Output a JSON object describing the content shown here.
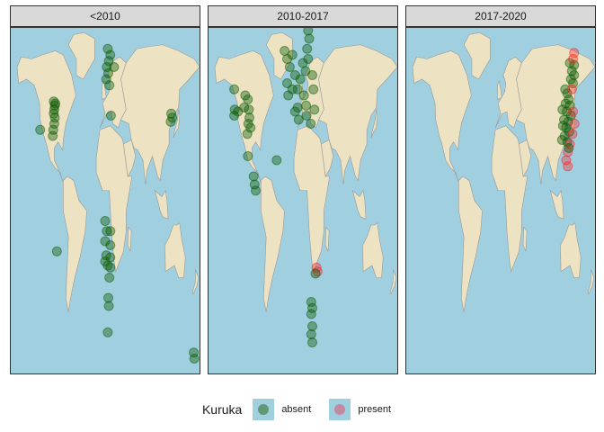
{
  "legend": {
    "title": "Kuruka",
    "items": [
      {
        "label": "absent",
        "color": "#2e6b1f"
      },
      {
        "label": "present",
        "color": "#e0506a"
      }
    ]
  },
  "colors": {
    "ocean": "#a0cfe0",
    "land": "#ede3c3",
    "border": "#999999",
    "absent": "#0b5a00",
    "present": "#ff2020"
  },
  "panels": [
    {
      "label": "<2010",
      "points": [
        {
          "lon": -98,
          "lat": 49,
          "status": "absent"
        },
        {
          "lon": -96,
          "lat": 47,
          "status": "absent"
        },
        {
          "lon": -97,
          "lat": 45,
          "status": "absent"
        },
        {
          "lon": -95,
          "lat": 48,
          "status": "absent"
        },
        {
          "lon": -98,
          "lat": 43,
          "status": "absent"
        },
        {
          "lon": -96,
          "lat": 41,
          "status": "absent"
        },
        {
          "lon": -97,
          "lat": 38,
          "status": "absent"
        },
        {
          "lon": -99,
          "lat": 35,
          "status": "absent"
        },
        {
          "lon": -100,
          "lat": 32,
          "status": "absent"
        },
        {
          "lon": -124,
          "lat": 35,
          "status": "absent"
        },
        {
          "lon": -92,
          "lat": -25,
          "status": "absent"
        },
        {
          "lon": 5,
          "lat": 75,
          "status": "absent"
        },
        {
          "lon": 10,
          "lat": 72,
          "status": "absent"
        },
        {
          "lon": 7,
          "lat": 69,
          "status": "absent"
        },
        {
          "lon": 3,
          "lat": 66,
          "status": "absent"
        },
        {
          "lon": 6,
          "lat": 63,
          "status": "absent"
        },
        {
          "lon": 2,
          "lat": 60,
          "status": "absent"
        },
        {
          "lon": 8,
          "lat": 57,
          "status": "absent"
        },
        {
          "lon": 17,
          "lat": 66,
          "status": "absent"
        },
        {
          "lon": 11,
          "lat": 42,
          "status": "absent"
        },
        {
          "lon": 126,
          "lat": 43,
          "status": "absent"
        },
        {
          "lon": 128,
          "lat": 41,
          "status": "absent"
        },
        {
          "lon": 125,
          "lat": 39,
          "status": "absent"
        },
        {
          "lon": 0,
          "lat": -10,
          "status": "absent"
        },
        {
          "lon": 3,
          "lat": -15,
          "status": "absent"
        },
        {
          "lon": 10,
          "lat": -15,
          "status": "absent"
        },
        {
          "lon": 0,
          "lat": -20,
          "status": "absent"
        },
        {
          "lon": 10,
          "lat": -22,
          "status": "absent"
        },
        {
          "lon": 2,
          "lat": -27,
          "status": "absent"
        },
        {
          "lon": 10,
          "lat": -28,
          "status": "absent"
        },
        {
          "lon": 0,
          "lat": -30,
          "status": "absent"
        },
        {
          "lon": 5,
          "lat": -32,
          "status": "absent"
        },
        {
          "lon": 10,
          "lat": -33,
          "status": "absent"
        },
        {
          "lon": 8,
          "lat": -38,
          "status": "absent"
        },
        {
          "lon": 6,
          "lat": -48,
          "status": "absent"
        },
        {
          "lon": 7,
          "lat": -52,
          "status": "absent"
        },
        {
          "lon": 5,
          "lat": -65,
          "status": "absent"
        },
        {
          "lon": 169,
          "lat": -75,
          "status": "absent"
        },
        {
          "lon": 170,
          "lat": -78,
          "status": "absent"
        }
      ]
    },
    {
      "label": "2010-2017",
      "points": [
        {
          "lon": -131,
          "lat": 55,
          "status": "absent"
        },
        {
          "lon": -130,
          "lat": 45,
          "status": "absent"
        },
        {
          "lon": -131,
          "lat": 42,
          "status": "absent"
        },
        {
          "lon": -124,
          "lat": 44,
          "status": "absent"
        },
        {
          "lon": -110,
          "lat": 52,
          "status": "absent"
        },
        {
          "lon": -112,
          "lat": 46,
          "status": "absent"
        },
        {
          "lon": -105,
          "lat": 50,
          "status": "absent"
        },
        {
          "lon": -103,
          "lat": 45,
          "status": "absent"
        },
        {
          "lon": -102,
          "lat": 41,
          "status": "absent"
        },
        {
          "lon": -104,
          "lat": 38,
          "status": "absent"
        },
        {
          "lon": -100,
          "lat": 36,
          "status": "absent"
        },
        {
          "lon": -106,
          "lat": 33,
          "status": "absent"
        },
        {
          "lon": -105,
          "lat": 22,
          "status": "absent"
        },
        {
          "lon": -94,
          "lat": 12,
          "status": "absent"
        },
        {
          "lon": -92,
          "lat": 8,
          "status": "absent"
        },
        {
          "lon": -90,
          "lat": 5,
          "status": "absent"
        },
        {
          "lon": -50,
          "lat": 20,
          "status": "absent"
        },
        {
          "lon": -35,
          "lat": 74,
          "status": "absent"
        },
        {
          "lon": -30,
          "lat": 70,
          "status": "absent"
        },
        {
          "lon": -25,
          "lat": 66,
          "status": "absent"
        },
        {
          "lon": -20,
          "lat": 72,
          "status": "absent"
        },
        {
          "lon": -15,
          "lat": 62,
          "status": "absent"
        },
        {
          "lon": -30,
          "lat": 58,
          "status": "absent"
        },
        {
          "lon": -20,
          "lat": 55,
          "status": "absent"
        },
        {
          "lon": -28,
          "lat": 52,
          "status": "absent"
        },
        {
          "lon": -10,
          "lat": 55,
          "status": "absent"
        },
        {
          "lon": -5,
          "lat": 60,
          "status": "absent"
        },
        {
          "lon": 0,
          "lat": 68,
          "status": "absent"
        },
        {
          "lon": 5,
          "lat": 64,
          "status": "absent"
        },
        {
          "lon": 10,
          "lat": 70,
          "status": "absent"
        },
        {
          "lon": 8,
          "lat": 75,
          "status": "absent"
        },
        {
          "lon": 12,
          "lat": 80,
          "status": "absent"
        },
        {
          "lon": 10,
          "lat": 84,
          "status": "absent"
        },
        {
          "lon": 2,
          "lat": 52,
          "status": "absent"
        },
        {
          "lon": 6,
          "lat": 47,
          "status": "absent"
        },
        {
          "lon": -10,
          "lat": 46,
          "status": "absent"
        },
        {
          "lon": -15,
          "lat": 44,
          "status": "absent"
        },
        {
          "lon": -8,
          "lat": 40,
          "status": "absent"
        },
        {
          "lon": 7,
          "lat": 42,
          "status": "absent"
        },
        {
          "lon": 18,
          "lat": 62,
          "status": "absent"
        },
        {
          "lon": 20,
          "lat": 55,
          "status": "absent"
        },
        {
          "lon": 22,
          "lat": 45,
          "status": "absent"
        },
        {
          "lon": 15,
          "lat": 38,
          "status": "absent"
        },
        {
          "lon": 26,
          "lat": -33,
          "status": "present"
        },
        {
          "lon": 28,
          "lat": -35,
          "status": "present"
        },
        {
          "lon": 24,
          "lat": -36,
          "status": "absent"
        },
        {
          "lon": 16,
          "lat": -50,
          "status": "absent"
        },
        {
          "lon": 18,
          "lat": -53,
          "status": "absent"
        },
        {
          "lon": 16,
          "lat": -56,
          "status": "absent"
        },
        {
          "lon": 18,
          "lat": -62,
          "status": "absent"
        },
        {
          "lon": 16,
          "lat": -66,
          "status": "absent"
        },
        {
          "lon": 18,
          "lat": -70,
          "status": "absent"
        }
      ]
    },
    {
      "label": "2017-2020",
      "points": [
        {
          "lon": 123,
          "lat": 55,
          "status": "absent"
        },
        {
          "lon": 127,
          "lat": 53,
          "status": "absent"
        },
        {
          "lon": 130,
          "lat": 50,
          "status": "absent"
        },
        {
          "lon": 124,
          "lat": 48,
          "status": "absent"
        },
        {
          "lon": 132,
          "lat": 47,
          "status": "absent"
        },
        {
          "lon": 118,
          "lat": 45,
          "status": "absent"
        },
        {
          "lon": 126,
          "lat": 44,
          "status": "absent"
        },
        {
          "lon": 134,
          "lat": 42,
          "status": "absent"
        },
        {
          "lon": 121,
          "lat": 40,
          "status": "absent"
        },
        {
          "lon": 129,
          "lat": 39,
          "status": "absent"
        },
        {
          "lon": 119,
          "lat": 37,
          "status": "absent"
        },
        {
          "lon": 125,
          "lat": 36,
          "status": "absent"
        },
        {
          "lon": 131,
          "lat": 34,
          "status": "absent"
        },
        {
          "lon": 122,
          "lat": 32,
          "status": "absent"
        },
        {
          "lon": 117,
          "lat": 30,
          "status": "absent"
        },
        {
          "lon": 127,
          "lat": 29,
          "status": "absent"
        },
        {
          "lon": 134,
          "lat": 60,
          "status": "absent"
        },
        {
          "lon": 136,
          "lat": 64,
          "status": "absent"
        },
        {
          "lon": 138,
          "lat": 58,
          "status": "absent"
        },
        {
          "lon": 140,
          "lat": 62,
          "status": "absent"
        },
        {
          "lon": 140,
          "lat": 67,
          "status": "absent"
        },
        {
          "lon": 132,
          "lat": 68,
          "status": "absent"
        },
        {
          "lon": 138,
          "lat": 70,
          "status": "present"
        },
        {
          "lon": 140,
          "lat": 73,
          "status": "present"
        },
        {
          "lon": 136,
          "lat": 55,
          "status": "present"
        },
        {
          "lon": 138,
          "lat": 44,
          "status": "present"
        },
        {
          "lon": 141,
          "lat": 38,
          "status": "present"
        },
        {
          "lon": 137,
          "lat": 33,
          "status": "present"
        },
        {
          "lon": 132,
          "lat": 28,
          "status": "present"
        },
        {
          "lon": 128,
          "lat": 24,
          "status": "present"
        },
        {
          "lon": 125,
          "lat": 20,
          "status": "present"
        },
        {
          "lon": 128,
          "lat": 17,
          "status": "present"
        },
        {
          "lon": 130,
          "lat": 26,
          "status": "absent"
        }
      ]
    }
  ]
}
